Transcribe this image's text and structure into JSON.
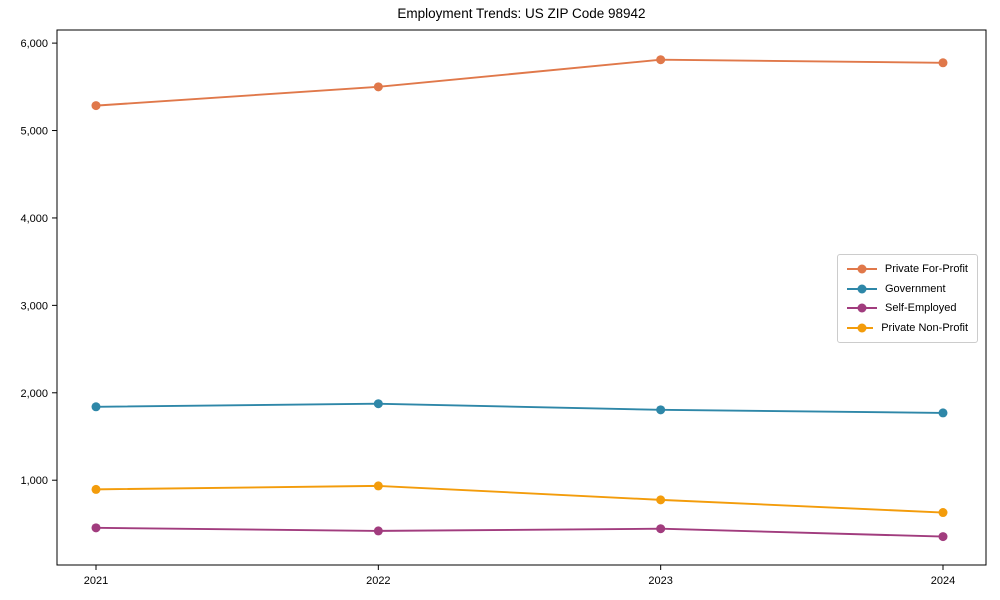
{
  "chart_data": {
    "type": "line",
    "title": "Employment Trends: US ZIP Code 98942",
    "x": [
      2021,
      2022,
      2023,
      2024
    ],
    "x_tick_labels": [
      "2021",
      "2022",
      "2023",
      "2024"
    ],
    "series": [
      {
        "name": "Private For-Profit",
        "color": "#E0784A",
        "values": [
          5285,
          5500,
          5810,
          5775
        ]
      },
      {
        "name": "Government",
        "color": "#2E87A8",
        "values": [
          1840,
          1875,
          1805,
          1770
        ]
      },
      {
        "name": "Self-Employed",
        "color": "#A13C7E",
        "values": [
          455,
          420,
          445,
          355
        ]
      },
      {
        "name": "Private Non-Profit",
        "color": "#F39C0B",
        "values": [
          895,
          935,
          775,
          630
        ]
      }
    ],
    "y_ticks": [
      1000,
      2000,
      3000,
      4000,
      5000,
      6000
    ],
    "y_tick_labels": [
      "1,000",
      "2,000",
      "3,000",
      "4,000",
      "5,000",
      "6,000"
    ],
    "ylim": [
      30,
      6150
    ],
    "xlabel": "",
    "ylabel": "",
    "grid": false,
    "legend_position": "center right",
    "marker": "circle",
    "background_color": "#ffffff",
    "axis_color": "#000000"
  }
}
